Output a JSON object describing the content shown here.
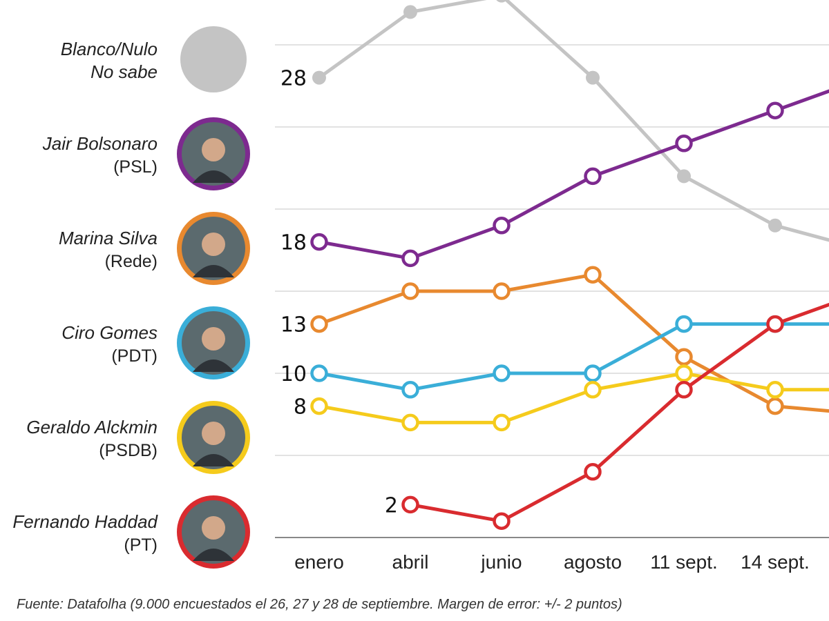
{
  "chart_data": {
    "type": "line",
    "categories": [
      "enero",
      "abril",
      "junio",
      "agosto",
      "11 sept.",
      "14 sept."
    ],
    "ylim": [
      0,
      34
    ],
    "grid": true,
    "series": [
      {
        "name": "Blanco/Nulo",
        "subtitle": "No sabe",
        "color": "#c4c4c4",
        "marker": "filled",
        "values": [
          28,
          32,
          33,
          28,
          22,
          19
        ],
        "end_value": 17.5,
        "first_label": "28"
      },
      {
        "name": "Jair Bolsonaro",
        "subtitle": "(PSL)",
        "color": "#7d2a8f",
        "marker": "ring",
        "values": [
          18,
          17,
          19,
          22,
          24,
          26
        ],
        "end_value": 28,
        "first_label": "18"
      },
      {
        "name": "Marina Silva",
        "subtitle": "(Rede)",
        "color": "#e8892f",
        "marker": "ring",
        "values": [
          13,
          15,
          15,
          16,
          11,
          8
        ],
        "end_value": 7.5,
        "first_label": "13"
      },
      {
        "name": "Ciro Gomes",
        "subtitle": "(PDT)",
        "color": "#3aaed8",
        "marker": "ring",
        "values": [
          10,
          9,
          10,
          10,
          13,
          13
        ],
        "end_value": 13,
        "first_label": "10"
      },
      {
        "name": "Geraldo Alckmin",
        "subtitle": "(PSDB)",
        "color": "#f5cb1c",
        "marker": "ring",
        "values": [
          8,
          7,
          7,
          9,
          10,
          9
        ],
        "end_value": 9,
        "first_label": "8"
      },
      {
        "name": "Fernando Haddad",
        "subtitle": "(PT)",
        "color": "#d92b2f",
        "marker": "ring",
        "values": [
          null,
          2,
          1,
          4,
          9,
          13
        ],
        "end_value": 15,
        "first_label": "2"
      }
    ],
    "source": "Fuente: Datafolha (9.000 encuestados el 26, 27 y 28 de septiembre. Margen de error: +/- 2 puntos)"
  }
}
